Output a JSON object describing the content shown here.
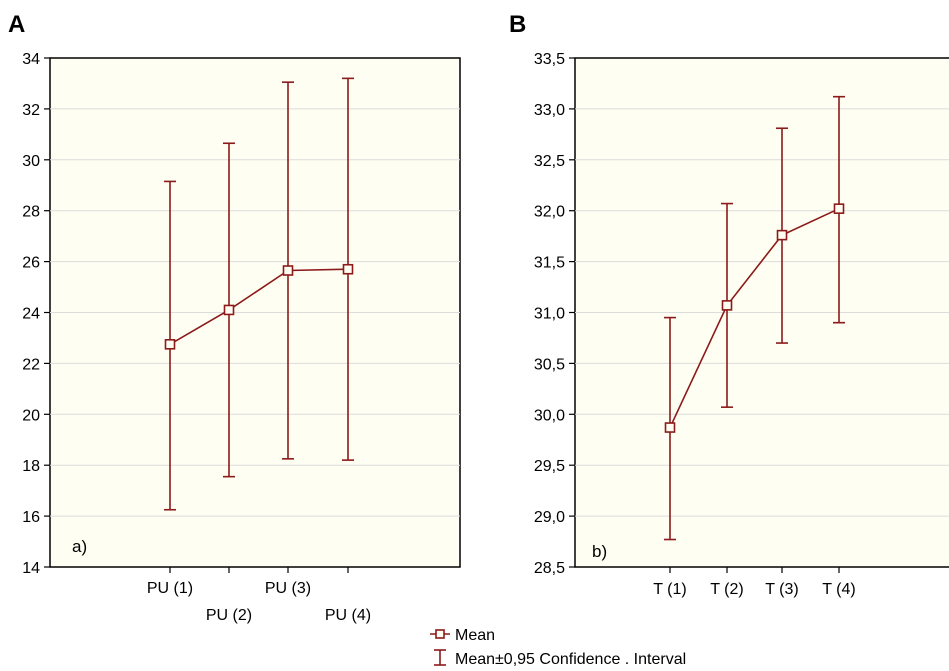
{
  "colors": {
    "series": "#8B1A1A",
    "plot_bg": "#fffef3",
    "grid": "#dcdcdc",
    "frame": "#000000"
  },
  "legend": {
    "mean_label": "Mean",
    "ci_label": "Mean±0,95 Confidence . Interval",
    "mean_marker": "square-marker-icon",
    "ci_marker": "error-bar-icon"
  },
  "chart_data": [
    {
      "type": "line",
      "panel_letter": "A",
      "panel_tag": "a)",
      "categories": [
        "PU (1)",
        "PU (2)",
        "PU (3)",
        "PU (4)"
      ],
      "series": [
        {
          "name": "Mean",
          "values": [
            22.75,
            24.1,
            25.65,
            25.7
          ]
        },
        {
          "name": "Mean±0,95 Confidence . Interval",
          "lower": [
            16.25,
            17.55,
            18.25,
            18.2
          ],
          "upper": [
            29.15,
            30.65,
            33.05,
            33.2
          ]
        }
      ],
      "ylim": [
        14,
        34
      ],
      "yticks": [
        "14",
        "16",
        "18",
        "20",
        "22",
        "24",
        "26",
        "28",
        "30",
        "32",
        "34"
      ],
      "grid": true
    },
    {
      "type": "line",
      "panel_letter": "B",
      "panel_tag": "b)",
      "categories": [
        "T (1)",
        "T (2)",
        "T (3)",
        "T (4)"
      ],
      "series": [
        {
          "name": "Mean",
          "values": [
            29.87,
            31.07,
            31.76,
            32.02
          ]
        },
        {
          "name": "Mean±0,95 Confidence . Interval",
          "lower": [
            28.77,
            30.07,
            30.7,
            30.9
          ],
          "upper": [
            30.95,
            32.07,
            32.81,
            33.12
          ]
        }
      ],
      "ylim": [
        28.5,
        33.5
      ],
      "yticks": [
        "28,5",
        "29,0",
        "29,5",
        "30,0",
        "30,5",
        "31,0",
        "31,5",
        "32,0",
        "32,5",
        "33,0",
        "33,5"
      ],
      "grid": true
    }
  ]
}
